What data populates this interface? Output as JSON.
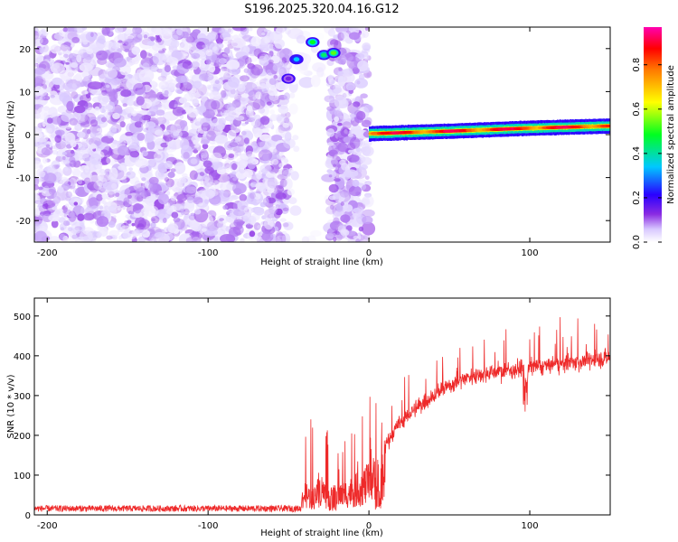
{
  "title": "S196.2025.320.04.16.G12",
  "chart_data": [
    {
      "type": "heatmap",
      "panel": "top",
      "xlabel": "Height of straight line (km)",
      "ylabel": "Frequency (Hz)",
      "xlim": [
        -208,
        150
      ],
      "ylim": [
        -25,
        25
      ],
      "xticks": [
        -200,
        -100,
        0,
        100
      ],
      "yticks": [
        -20,
        -10,
        0,
        10,
        20
      ],
      "colorbar": {
        "label": "Normalized spectral amplitude",
        "range": [
          0,
          0.97
        ],
        "ticks": [
          "0.0",
          "0.2",
          "0.4",
          "0.6",
          "0.8"
        ],
        "tick_values": [
          0.0,
          0.2,
          0.4,
          0.6,
          0.8
        ]
      },
      "regions": [
        {
          "name": "noise",
          "x_range": [
            -208,
            -50
          ],
          "y_range": [
            -25,
            25
          ],
          "amplitude_range": [
            0.02,
            0.12
          ]
        },
        {
          "name": "gap",
          "x_range": [
            -50,
            -25
          ],
          "y_range": [
            -25,
            25
          ],
          "amplitude_range": [
            0,
            0.05
          ]
        },
        {
          "name": "turbulence",
          "x_range": [
            -25,
            0
          ],
          "y_range": [
            -25,
            25
          ],
          "amplitude_range": [
            0.03,
            0.12
          ]
        },
        {
          "name": "carrier",
          "x_range": [
            0,
            150
          ],
          "y_range": [
            0,
            2
          ],
          "amplitude_range": [
            0.4,
            0.97
          ]
        }
      ],
      "carrier_line": {
        "x": [
          0,
          50,
          100,
          150
        ],
        "y": [
          0.2,
          0.8,
          1.5,
          2.0
        ]
      },
      "hotspots": [
        {
          "x": -45,
          "y": 17.5,
          "amplitude": 0.35
        },
        {
          "x": -35,
          "y": 21.5,
          "amplitude": 0.5
        },
        {
          "x": -28,
          "y": 18.5,
          "amplitude": 0.45
        },
        {
          "x": -22,
          "y": 19,
          "amplitude": 0.55
        },
        {
          "x": -50,
          "y": 13,
          "amplitude": 0.15
        }
      ]
    },
    {
      "type": "line",
      "panel": "bottom",
      "xlabel": "Height of straight line (km)",
      "ylabel": "SNR (10 * v/v)",
      "xlim": [
        -208,
        150
      ],
      "ylim": [
        0,
        545
      ],
      "xticks": [
        -200,
        -100,
        0,
        100
      ],
      "yticks": [
        0,
        100,
        200,
        300,
        400,
        500
      ],
      "series": [
        {
          "name": "SNR",
          "color": "#ee2a2a",
          "x": [
            -208,
            -150,
            -100,
            -60,
            -45,
            -40,
            -35,
            -30,
            -25,
            -20,
            -10,
            0,
            10,
            20,
            30,
            40,
            50,
            60,
            70,
            80,
            90,
            100,
            110,
            120,
            130,
            140,
            150
          ],
          "y": [
            15,
            15,
            15,
            15,
            15,
            80,
            60,
            100,
            60,
            70,
            90,
            120,
            175,
            235,
            270,
            300,
            325,
            345,
            355,
            360,
            365,
            370,
            375,
            380,
            385,
            390,
            395
          ]
        }
      ]
    }
  ]
}
